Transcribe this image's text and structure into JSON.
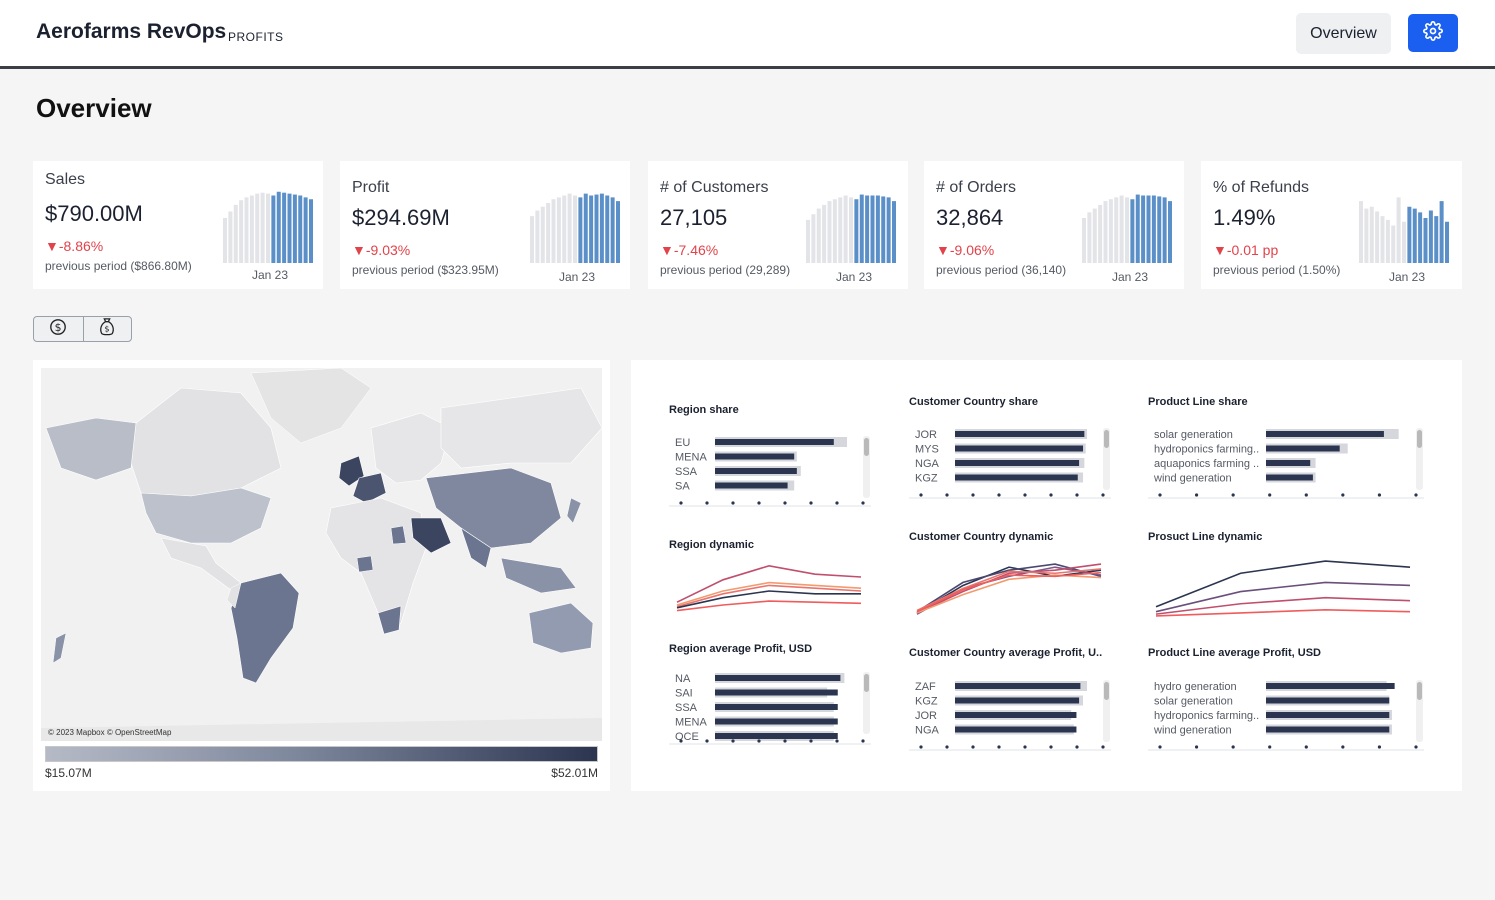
{
  "header": {
    "brand": "Aerofarms RevOps",
    "sub": "PROFITS",
    "overview_button": "Overview",
    "settings_icon": "gear-icon"
  },
  "page": {
    "title": "Overview"
  },
  "kpis": [
    {
      "label": "Sales",
      "value": "$790.00M",
      "delta": "▼-8.86%",
      "prev": "previous period ($866.80M)",
      "date": "Jan 23",
      "bars": [
        48,
        55,
        62,
        67,
        70,
        72,
        74,
        75,
        74,
        72,
        76,
        75,
        74,
        73,
        72,
        70,
        68
      ]
    },
    {
      "label": "Profit",
      "value": "$294.69M",
      "delta": "▼-9.03%",
      "prev": "previous period ($323.95M)",
      "date": "Jan 23",
      "bars": [
        50,
        56,
        60,
        64,
        68,
        70,
        72,
        74,
        72,
        70,
        74,
        72,
        73,
        74,
        72,
        70,
        66
      ]
    },
    {
      "label": "# of Customers",
      "value": "27,105",
      "delta": "▼-7.46%",
      "prev": "previous period (29,289)",
      "date": "Jan 23",
      "bars": [
        46,
        52,
        58,
        62,
        66,
        68,
        70,
        72,
        70,
        68,
        73,
        72,
        72,
        72,
        71,
        70,
        66
      ]
    },
    {
      "label": "# of Orders",
      "value": "32,864",
      "delta": "▼-9.06%",
      "prev": "previous period (36,140)",
      "date": "Jan 23",
      "bars": [
        48,
        54,
        58,
        62,
        66,
        68,
        70,
        72,
        70,
        68,
        73,
        72,
        72,
        72,
        71,
        70,
        66
      ]
    },
    {
      "label": "% of Refunds",
      "value": "1.49%",
      "delta": "▼-0.01 pp",
      "prev": "previous period (1.50%)",
      "date": "Jan 23",
      "bars": [
        66,
        58,
        60,
        55,
        50,
        46,
        40,
        70,
        44,
        60,
        58,
        54,
        48,
        56,
        50,
        66,
        44
      ]
    }
  ],
  "toggle": {
    "left_icon": "dollar-icon",
    "right_icon": "money-bag-icon"
  },
  "map": {
    "credit": "© 2023 Mapbox © OpenStreetMap",
    "legend_min": "$15.07M",
    "legend_max": "$52.01M"
  },
  "charts": {
    "region_share": {
      "title": "Region share",
      "labels": [
        "EU",
        "MENA",
        "SSA",
        "SA"
      ],
      "values": [
        0.9,
        0.6,
        0.62,
        0.55
      ],
      "bg": [
        1.0,
        0.62,
        0.65,
        0.6
      ]
    },
    "country_share": {
      "title": "Customer Country share",
      "labels": [
        "JOR",
        "MYS",
        "NGA",
        "KGZ"
      ],
      "values": [
        0.98,
        0.97,
        0.94,
        0.93
      ],
      "bg": [
        1.0,
        0.99,
        0.98,
        0.97
      ]
    },
    "product_share": {
      "title": "Product Line share",
      "labels": [
        "solar generation",
        "hydroponics farming..",
        "aquaponics farming ..",
        "wind generation"
      ],
      "values": [
        0.88,
        0.55,
        0.33,
        0.35
      ],
      "bg": [
        0.99,
        0.61,
        0.37,
        0.37
      ]
    },
    "region_dynamic": {
      "title": "Region dynamic",
      "series": [
        {
          "color": "#c04f6e",
          "values": [
            0.3,
            0.7,
            0.95,
            0.8,
            0.75
          ]
        },
        {
          "color": "#f29a70",
          "values": [
            0.25,
            0.5,
            0.65,
            0.6,
            0.55
          ]
        },
        {
          "color": "#e8756d",
          "values": [
            0.22,
            0.45,
            0.6,
            0.55,
            0.5
          ]
        },
        {
          "color": "#2b3550",
          "values": [
            0.2,
            0.38,
            0.5,
            0.45,
            0.45
          ]
        },
        {
          "color": "#f05c5c",
          "values": [
            0.15,
            0.25,
            0.32,
            0.3,
            0.28
          ]
        }
      ]
    },
    "country_dynamic": {
      "title": "Customer Country dynamic",
      "series": [
        {
          "color": "#2b3550",
          "values": [
            0.1,
            0.55,
            0.85,
            0.7,
            0.8
          ]
        },
        {
          "color": "#4b4870",
          "values": [
            0.12,
            0.6,
            0.8,
            0.9,
            0.7
          ]
        },
        {
          "color": "#7a5a8a",
          "values": [
            0.08,
            0.5,
            0.7,
            0.85,
            0.72
          ]
        },
        {
          "color": "#c04f6e",
          "values": [
            0.1,
            0.45,
            0.75,
            0.8,
            0.9
          ]
        },
        {
          "color": "#e8756d",
          "values": [
            0.14,
            0.5,
            0.78,
            0.75,
            0.82
          ]
        },
        {
          "color": "#f29a70",
          "values": [
            0.1,
            0.4,
            0.65,
            0.72,
            0.68
          ]
        },
        {
          "color": "#f05c5c",
          "values": [
            0.12,
            0.48,
            0.72,
            0.7,
            0.76
          ]
        }
      ]
    },
    "product_dynamic": {
      "title": "Prosuct Line dynamic",
      "series": [
        {
          "color": "#2b3550",
          "values": [
            0.2,
            0.75,
            0.95,
            0.85
          ]
        },
        {
          "color": "#6a4f7a",
          "values": [
            0.12,
            0.45,
            0.6,
            0.55
          ]
        },
        {
          "color": "#c04f6e",
          "values": [
            0.08,
            0.25,
            0.35,
            0.3
          ]
        },
        {
          "color": "#f05c5c",
          "values": [
            0.05,
            0.1,
            0.15,
            0.12
          ]
        }
      ]
    },
    "region_avg": {
      "title": "Region average Profit, USD",
      "labels": [
        "NA",
        "SAI",
        "SSA",
        "MENA",
        "OCE"
      ],
      "values": [
        0.95,
        0.93,
        0.93,
        0.93,
        0.93
      ],
      "bg": [
        0.98,
        0.85,
        0.9,
        0.9,
        0.9
      ]
    },
    "country_avg": {
      "title": "Customer Country average Profit, U..",
      "labels": [
        "ZAF",
        "KGZ",
        "JOR",
        "NGA"
      ],
      "values": [
        0.95,
        0.94,
        0.92,
        0.92
      ],
      "bg": [
        1.0,
        0.97,
        0.88,
        0.9
      ]
    },
    "product_avg": {
      "title": "Product Line average Profit, USD",
      "labels": [
        "hydro generation",
        "solar generation",
        "hydroponics farming..",
        "wind generation"
      ],
      "values": [
        0.96,
        0.92,
        0.92,
        0.92
      ],
      "bg": [
        0.9,
        0.92,
        0.94,
        0.94
      ]
    }
  },
  "colors": {
    "accent": "#1a5ff0",
    "negative": "#e2434b",
    "bar_hist": "#e3e4e7",
    "bar_recent": "#5b8fc7",
    "bar_dark": "#2b3550",
    "bar_bg": "#d5d7dc"
  }
}
